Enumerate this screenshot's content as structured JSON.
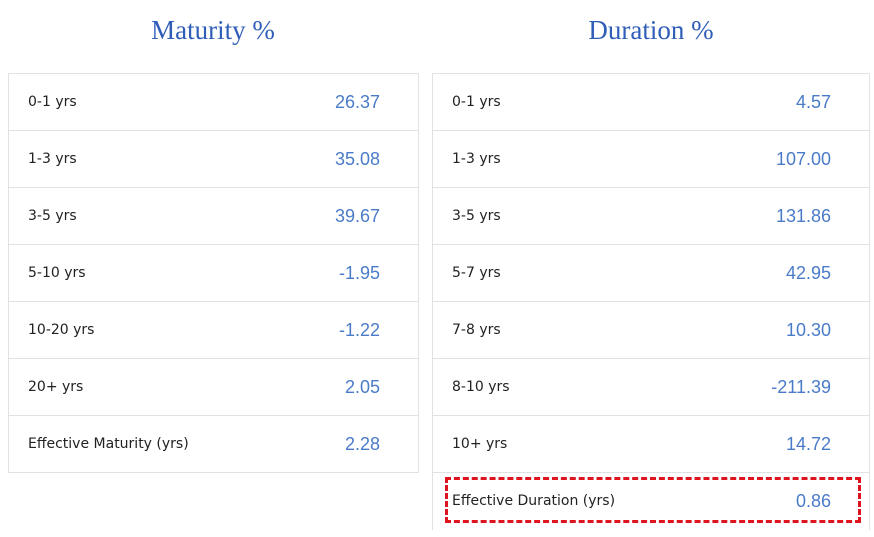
{
  "tables": [
    {
      "title": "Maturity %",
      "rows": [
        [
          "0-1 yrs",
          "26.37"
        ],
        [
          "1-3 yrs",
          "35.08"
        ],
        [
          "3-5 yrs",
          "39.67"
        ],
        [
          "5-10 yrs",
          "-1.95"
        ],
        [
          "10-20 yrs",
          "-1.22"
        ],
        [
          "20+ yrs",
          "2.05"
        ],
        [
          "Effective Maturity (yrs)",
          "2.28"
        ]
      ]
    },
    {
      "title": "Duration %",
      "rows": [
        [
          "0-1 yrs",
          "4.57"
        ],
        [
          "1-3 yrs",
          "107.00"
        ],
        [
          "3-5 yrs",
          "131.86"
        ],
        [
          "5-7 yrs",
          "42.95"
        ],
        [
          "7-8 yrs",
          "10.30"
        ],
        [
          "8-10 yrs",
          "-211.39"
        ],
        [
          "10+ yrs",
          "14.72"
        ],
        [
          "Effective Duration (yrs)",
          "0.86"
        ]
      ]
    }
  ]
}
